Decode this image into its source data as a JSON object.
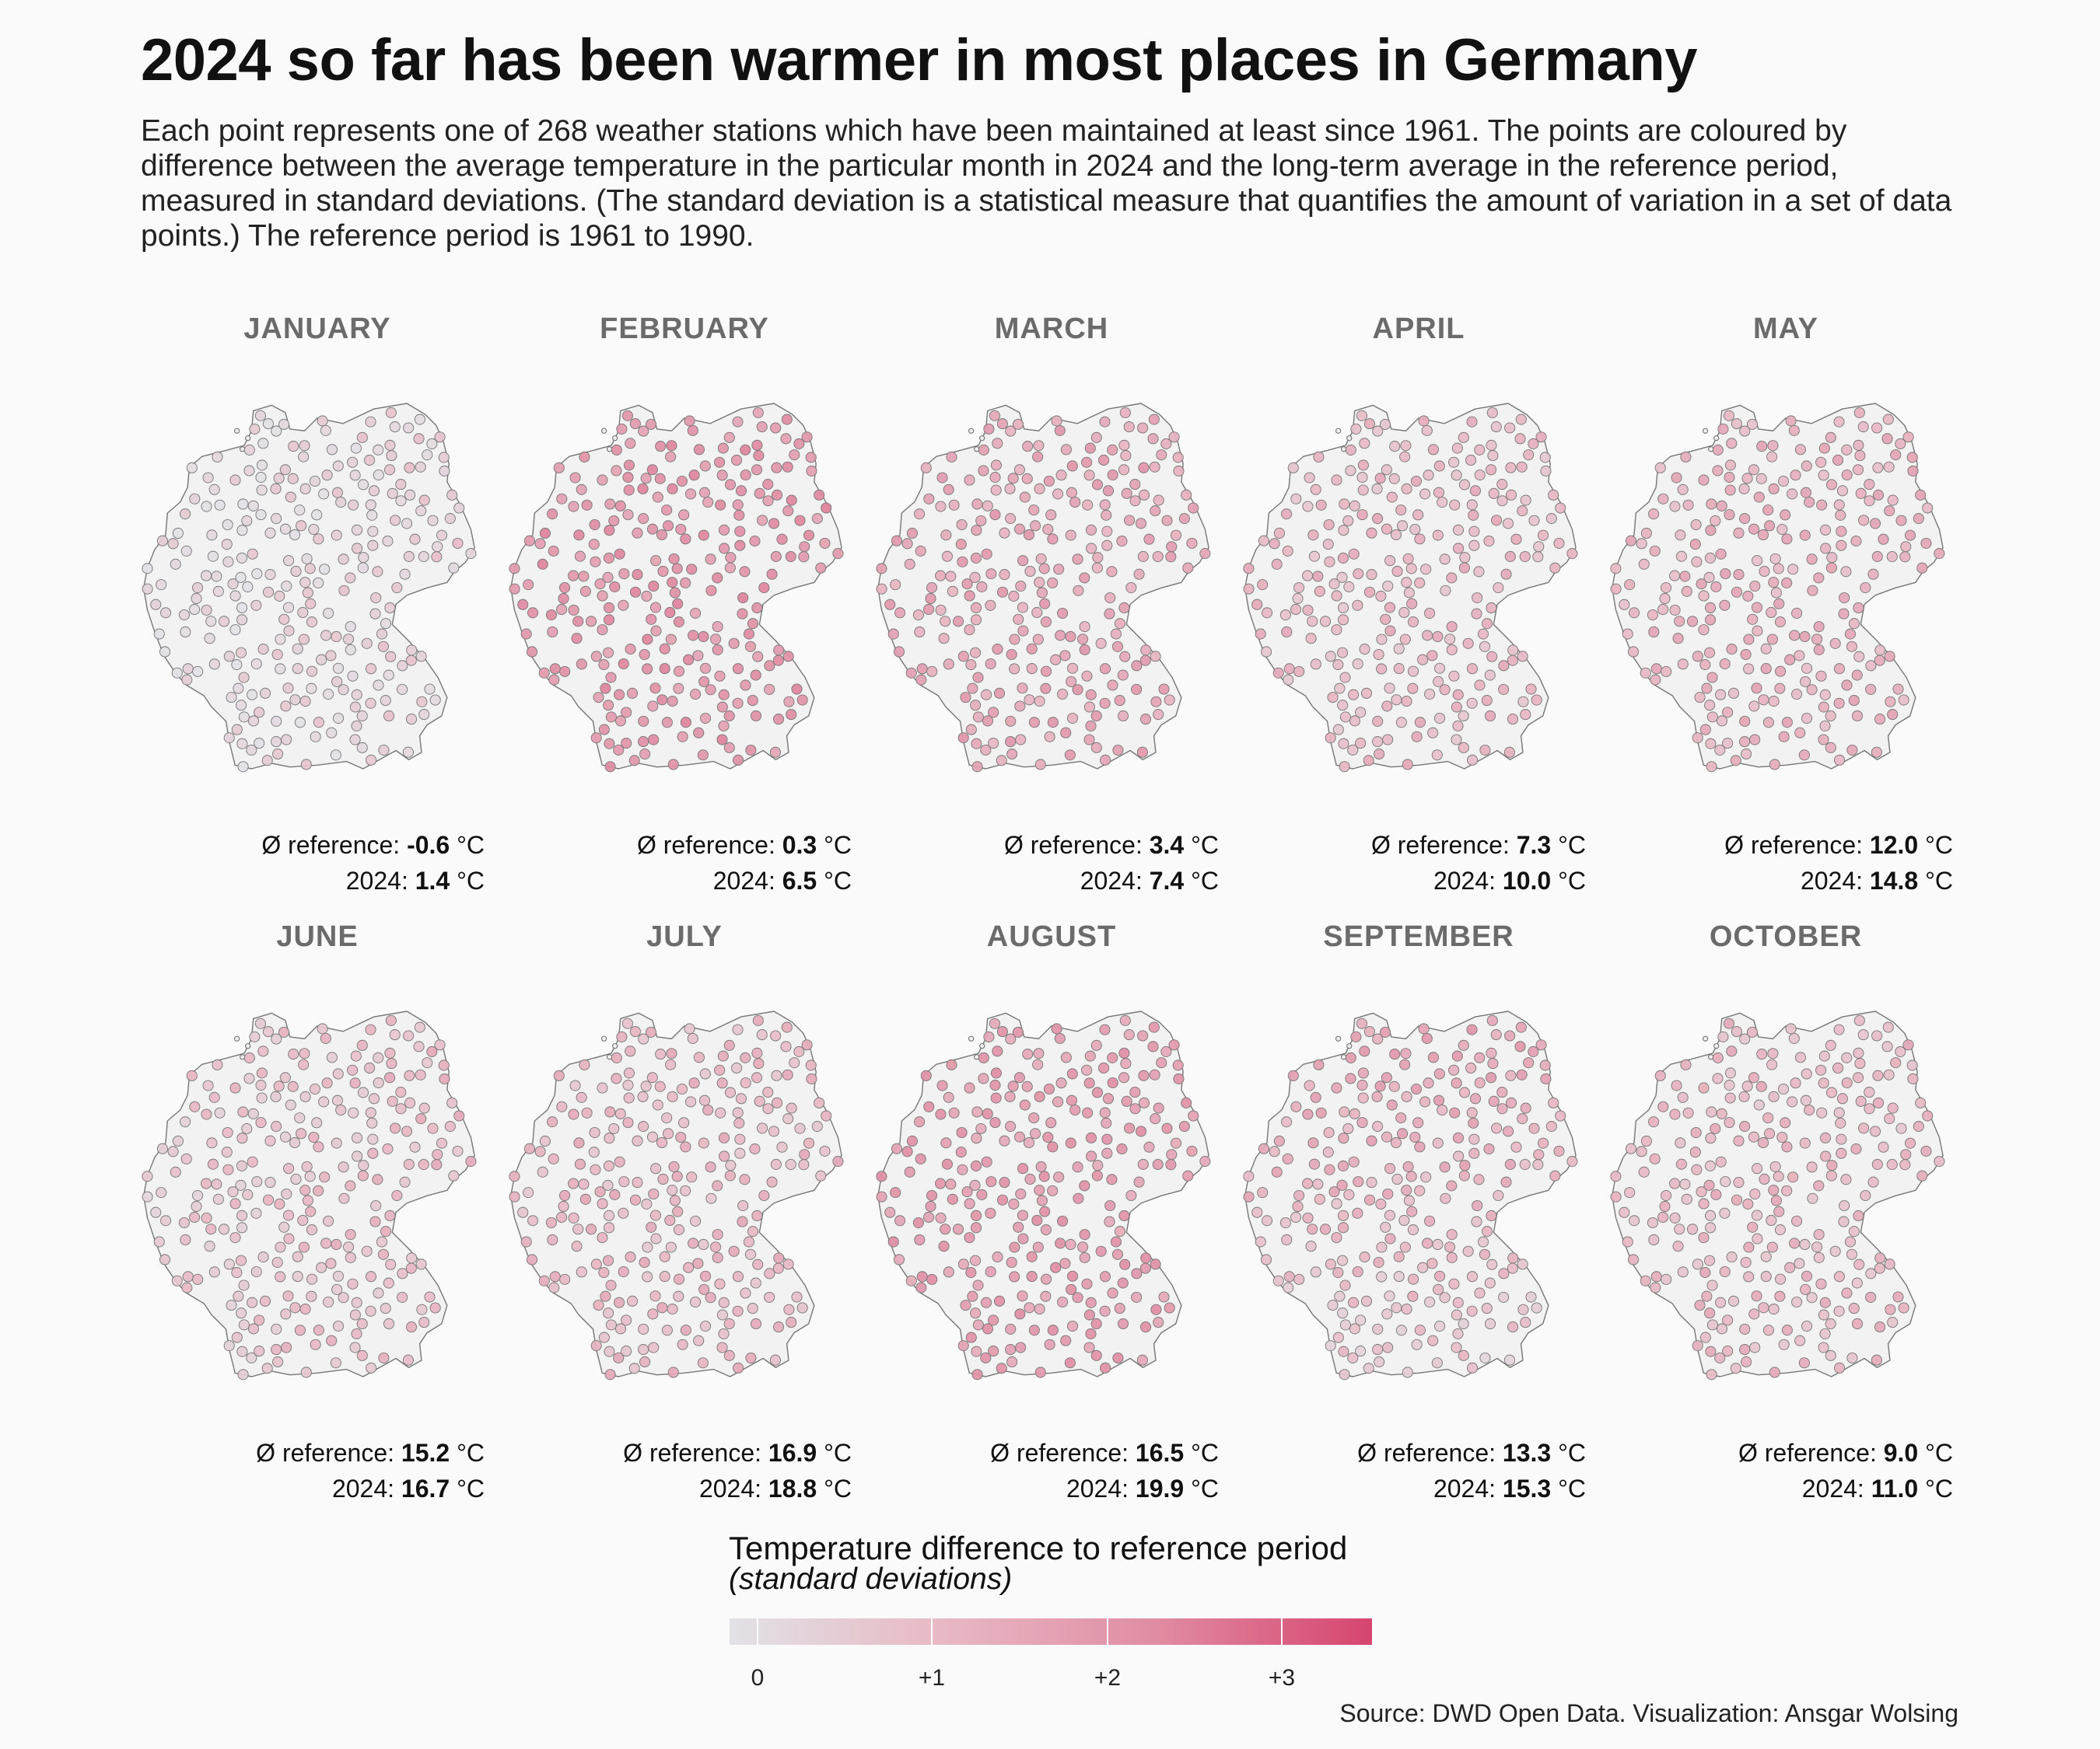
{
  "title": "2024 so far has been warmer in most places in Germany",
  "subtitle": "Each point represents one of 268 weather stations which have been maintained at least since 1961. The points are coloured by difference between the average temperature in the particular month in 2024 and the long-term average in the reference period, measured in standard deviations. (The standard deviation is a statistical measure that quantifies the amount of variation in a set of data points.) The reference period is 1961 to 1990.",
  "labels": {
    "ref_prefix": "Ø reference:",
    "cur_prefix": "2024:",
    "unit": "°C"
  },
  "legend": {
    "title": "Temperature difference to reference period",
    "subtitle": "(standard deviations)",
    "ticks": [
      "0",
      "+1",
      "+2",
      "+3"
    ],
    "colors": [
      "#e2e2e6",
      "#e8b8c4",
      "#e08ca2",
      "#d6456f"
    ]
  },
  "source": "Source: DWD Open Data. Visualization: Ansgar Wolsing",
  "chart_data": {
    "type": "scatter",
    "station_count": 268,
    "color_scale_range": [
      -0.2,
      3.5
    ],
    "map_fill": "#f2f2f2",
    "map_stroke": "#777777",
    "months": [
      {
        "name": "JANUARY",
        "reference": "-0.6",
        "y2024": "1.4",
        "mean_sd": 0.25
      },
      {
        "name": "FEBRUARY",
        "reference": "0.3",
        "y2024": "6.5",
        "mean_sd": 1.95
      },
      {
        "name": "MARCH",
        "reference": "3.4",
        "y2024": "7.4",
        "mean_sd": 1.5
      },
      {
        "name": "APRIL",
        "reference": "7.3",
        "y2024": "10.0",
        "mean_sd": 1.0
      },
      {
        "name": "MAY",
        "reference": "12.0",
        "y2024": "14.8",
        "mean_sd": 1.2
      },
      {
        "name": "JUNE",
        "reference": "15.2",
        "y2024": "16.7",
        "mean_sd": 0.8
      },
      {
        "name": "JULY",
        "reference": "16.9",
        "y2024": "18.8",
        "mean_sd": 1.0
      },
      {
        "name": "AUGUST",
        "reference": "16.5",
        "y2024": "19.9",
        "mean_sd": 1.75
      },
      {
        "name": "SEPTEMBER",
        "reference": "13.3",
        "y2024": "15.3",
        "mean_sd": 1.1
      },
      {
        "name": "OCTOBER",
        "reference": "9.0",
        "y2024": "11.0",
        "mean_sd": 1.0
      }
    ]
  }
}
